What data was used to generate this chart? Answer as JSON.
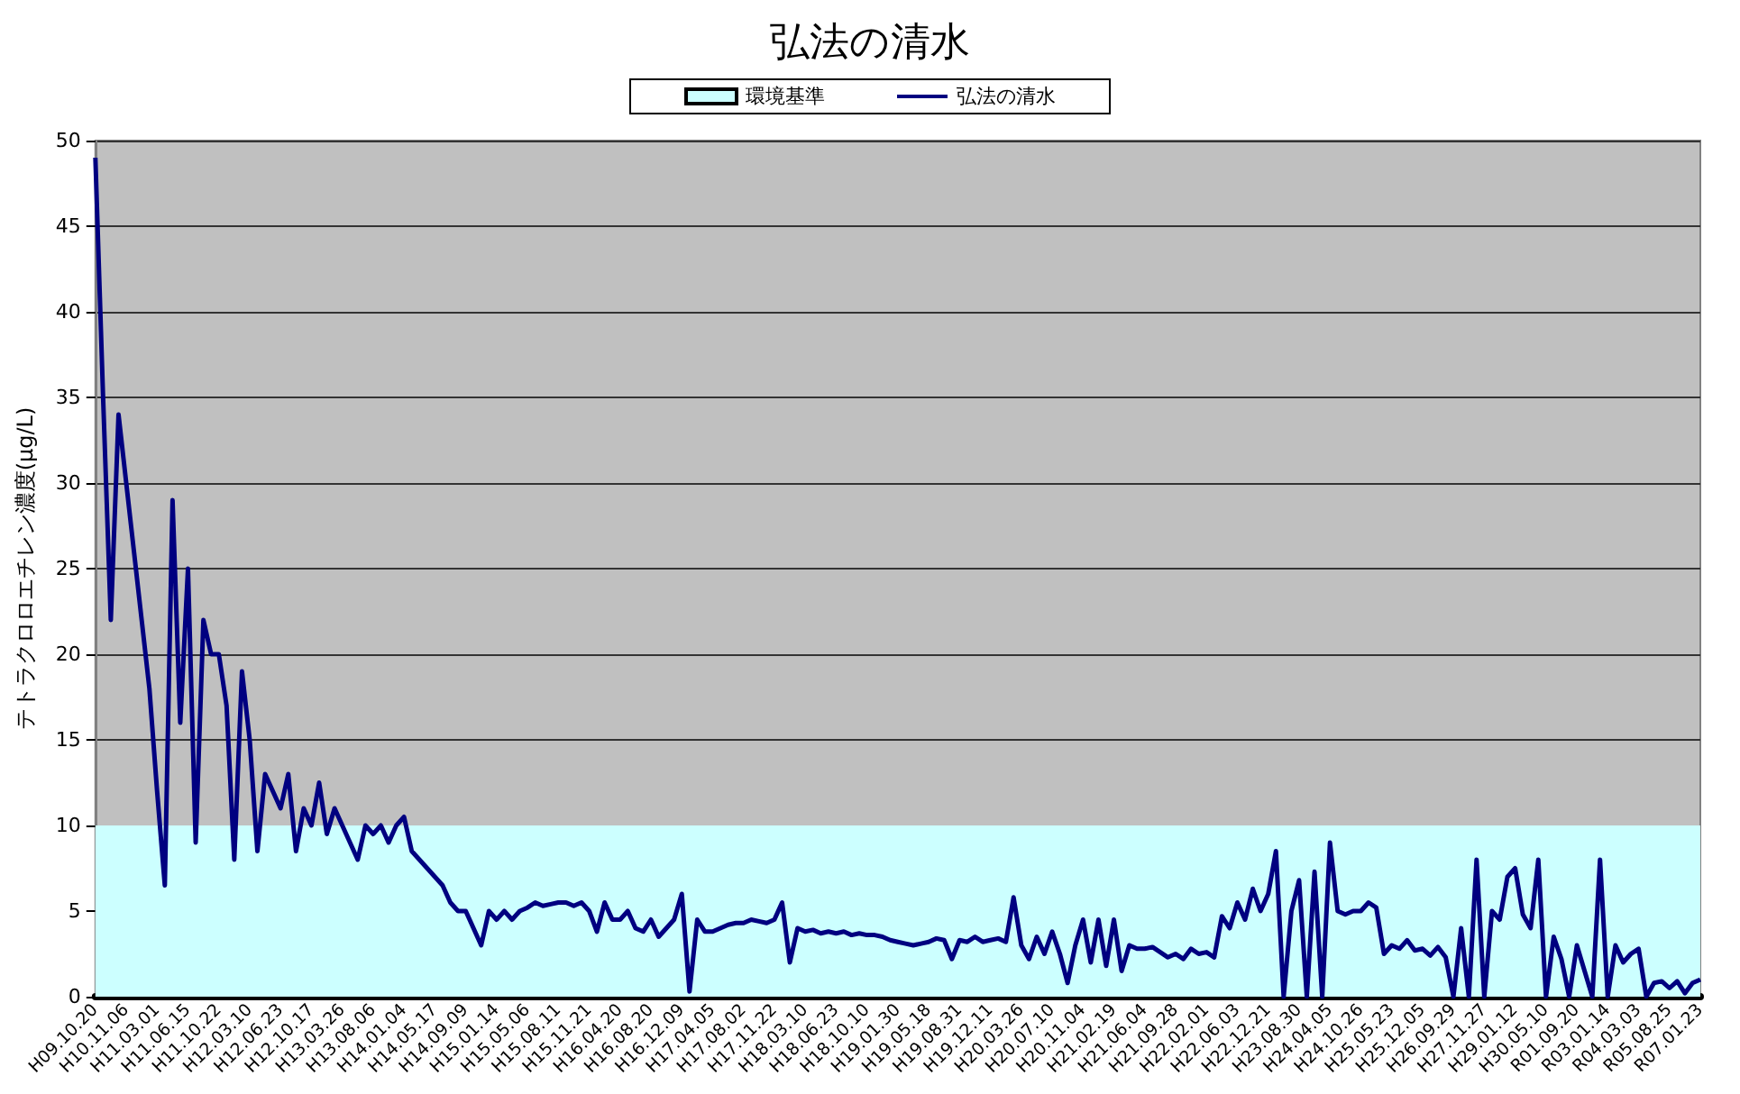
{
  "chart_data": {
    "type": "line",
    "title": "弘法の清水",
    "ylabel": "テトラクロロエチレン濃度(μg/L)",
    "categories": [
      "H09.10.20",
      null,
      null,
      null,
      "H10.11.06",
      null,
      null,
      null,
      "H11.03.01",
      null,
      null,
      null,
      "H11.06.15",
      null,
      null,
      null,
      "H11.10.22",
      null,
      null,
      null,
      "H12.03.10",
      null,
      null,
      null,
      "H12.06.23",
      null,
      null,
      null,
      "H12.10.17",
      null,
      null,
      null,
      "H13.03.26",
      null,
      null,
      null,
      "H13.08.06",
      null,
      null,
      null,
      "H14.01.04",
      null,
      null,
      null,
      "H14.05.17",
      null,
      null,
      null,
      "H14.09.09",
      null,
      null,
      null,
      "H15.01.14",
      null,
      null,
      null,
      "H15.05.06",
      null,
      null,
      null,
      "H15.08.11",
      null,
      null,
      null,
      "H15.11.21",
      null,
      null,
      null,
      "H16.04.20",
      null,
      null,
      null,
      "H16.08.20",
      null,
      null,
      null,
      "H16.12.09",
      null,
      null,
      null,
      "H17.04.05",
      null,
      null,
      null,
      "H17.08.02",
      null,
      null,
      null,
      "H17.11.22",
      null,
      null,
      null,
      "H18.03.10",
      null,
      null,
      null,
      "H18.06.23",
      null,
      null,
      null,
      "H18.10.10",
      null,
      null,
      null,
      "H19.01.30",
      null,
      null,
      null,
      "H19.05.18",
      null,
      null,
      null,
      "H19.08.31",
      null,
      null,
      null,
      "H19.12.11",
      null,
      null,
      null,
      "H20.03.26",
      null,
      null,
      null,
      "H20.07.10",
      null,
      null,
      null,
      "H20.11.04",
      null,
      null,
      null,
      "H21.02.19",
      null,
      null,
      null,
      "H21.06.04",
      null,
      null,
      null,
      "H21.09.28",
      null,
      null,
      null,
      "H22.02.01",
      null,
      null,
      null,
      "H22.06.03",
      null,
      null,
      null,
      "H22.12.21",
      null,
      null,
      null,
      "H23.08.30",
      null,
      null,
      null,
      "H24.04.05",
      null,
      null,
      null,
      "H24.10.26",
      null,
      null,
      null,
      "H25.05.23",
      null,
      null,
      null,
      "H25.12.05",
      null,
      null,
      null,
      "H26.09.29",
      null,
      null,
      null,
      "H27.11.27",
      null,
      null,
      null,
      "H29.01.12",
      null,
      null,
      null,
      "H30.05.10",
      null,
      null,
      null,
      "R01.09.20",
      null,
      null,
      null,
      "R03.01.14",
      null,
      null,
      null,
      "R04.03.03",
      null,
      null,
      null,
      "R05.08.25",
      null,
      null,
      null,
      "R07.01.23"
    ],
    "series": [
      {
        "name": "弘法の清水",
        "color": "#000080",
        "values": [
          49,
          35,
          22,
          34,
          30,
          26,
          22,
          18,
          12,
          6.5,
          29,
          16,
          25,
          9,
          22,
          20,
          20,
          17,
          8,
          19,
          15,
          8.5,
          13,
          12,
          11,
          13,
          8.5,
          11,
          10,
          12.5,
          9.5,
          11,
          10,
          9,
          8,
          10,
          9.5,
          10,
          9,
          10,
          10.5,
          8.5,
          8,
          7.5,
          7,
          6.5,
          5.5,
          5,
          5,
          4,
          3,
          5,
          4.5,
          5,
          4.5,
          5,
          5.2,
          5.5,
          5.3,
          5.4,
          5.5,
          5.5,
          5.3,
          5.5,
          5,
          3.8,
          5.5,
          4.5,
          4.5,
          5,
          4,
          3.8,
          4.5,
          3.5,
          4,
          4.5,
          6,
          0.3,
          4.5,
          3.8,
          3.8,
          4,
          4.2,
          4.3,
          4.3,
          4.5,
          4.4,
          4.3,
          4.5,
          5.5,
          2,
          4,
          3.8,
          3.9,
          3.7,
          3.8,
          3.7,
          3.8,
          3.6,
          3.7,
          3.6,
          3.6,
          3.5,
          3.3,
          3.2,
          3.1,
          3,
          3.1,
          3.2,
          3.4,
          3.3,
          2.2,
          3.3,
          3.2,
          3.5,
          3.2,
          3.3,
          3.4,
          3.2,
          5.8,
          3,
          2.2,
          3.5,
          2.5,
          3.8,
          2.5,
          0.8,
          3,
          4.5,
          2,
          4.5,
          1.8,
          4.5,
          1.5,
          3,
          2.8,
          2.8,
          2.9,
          2.6,
          2.3,
          2.5,
          2.2,
          2.8,
          2.5,
          2.6,
          2.3,
          4.7,
          4,
          5.5,
          4.5,
          6.3,
          5,
          6,
          8.5,
          0,
          5,
          6.8,
          0,
          7.3,
          0,
          9,
          5,
          4.8,
          5,
          5,
          5.5,
          5.2,
          2.5,
          3,
          2.8,
          3.3,
          2.7,
          2.8,
          2.4,
          2.9,
          2.3,
          0,
          4,
          0,
          8,
          0,
          5,
          4.5,
          7,
          7.5,
          4.8,
          4,
          8,
          0,
          3.5,
          2.2,
          0,
          3,
          1.5,
          0,
          8,
          0,
          3,
          2,
          2.5,
          2.8,
          0,
          0.8,
          0.9,
          0.5,
          0.9,
          0.2,
          0.8,
          1
        ]
      }
    ],
    "bands": [
      {
        "axis": "y",
        "from": 0,
        "to": 10,
        "label": "環境基準",
        "color": "#ccffff"
      }
    ],
    "ylim": [
      0,
      50
    ],
    "yticks": [
      0,
      5,
      10,
      15,
      20,
      25,
      30,
      35,
      40,
      45,
      50
    ],
    "grid": "y",
    "legend": "top",
    "marker": "none",
    "line_style": "solid"
  }
}
